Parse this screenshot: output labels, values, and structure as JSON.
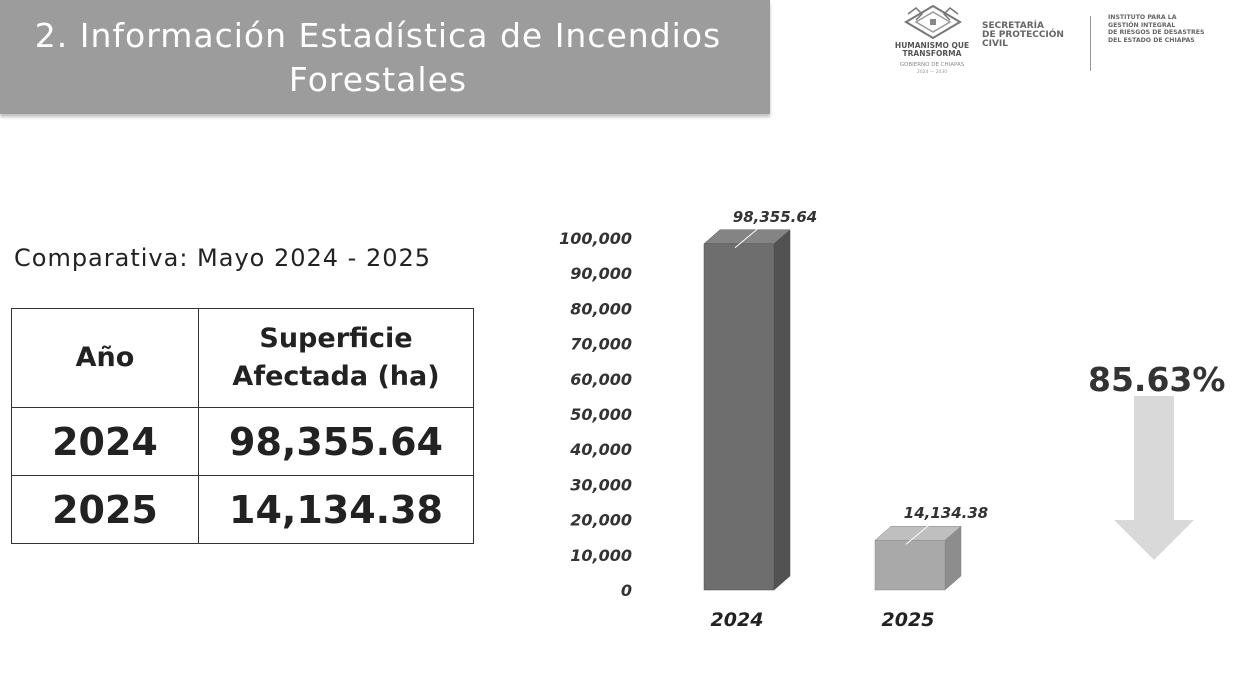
{
  "slide": {
    "title_line1": "2. Información Estadística de Incendios",
    "title_line2": "Forestales",
    "subtitle": "Comparativa: Mayo 2024 - 2025"
  },
  "logos": {
    "tagline_line1": "HUMANISMO QUE",
    "tagline_line2": "TRANSFORMA",
    "government": "GOBIERNO DE CHIAPAS",
    "period": "2024 — 2030",
    "secretaria": "SECRETARÍA\nDE PROTECCIÓN\nCIVIL",
    "instituto": "INSTITUTO PARA LA\nGESTIÓN INTEGRAL\nDE RIESGOS DE DESASTRES\nDEL ESTADO DE CHIAPAS"
  },
  "table": {
    "headers": [
      "Año",
      "Superficie Afectada (ha)"
    ],
    "rows": [
      [
        "2024",
        "98,355.64"
      ],
      [
        "2025",
        "14,134.38"
      ]
    ]
  },
  "chart_data": {
    "type": "bar",
    "categories": [
      "2024",
      "2025"
    ],
    "values": [
      98355.64,
      14134.38
    ],
    "data_labels": [
      "98,355.64",
      "14,134.38"
    ],
    "ylim": [
      0,
      100000
    ],
    "yticks": [
      "0",
      "10,000",
      "20,000",
      "30,000",
      "40,000",
      "50,000",
      "60,000",
      "70,000",
      "80,000",
      "90,000",
      "100,000"
    ],
    "bar_colors": [
      "#6e6e6e",
      "#a9a9a9"
    ],
    "style": "3d-column",
    "grid": false,
    "legend": "none"
  },
  "change": {
    "percent": "85.63%",
    "direction": "decrease",
    "arrow_color": "#d9d9d9"
  }
}
